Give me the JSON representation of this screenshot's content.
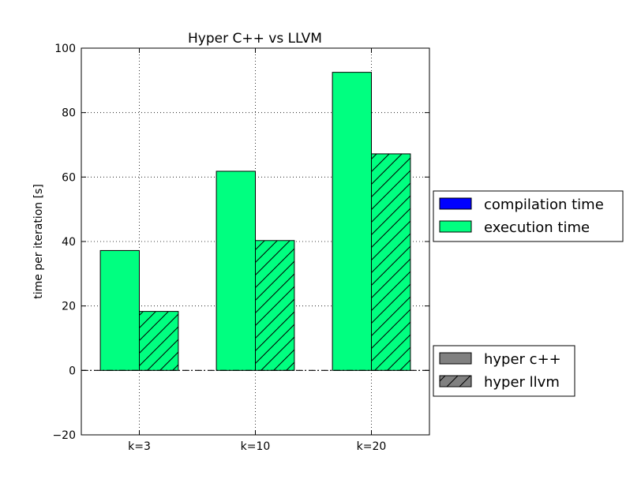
{
  "chart_data": {
    "type": "bar",
    "title": "Hyper C++ vs LLVM",
    "xlabel": "",
    "ylabel": "time per iteration [s]",
    "categories": [
      "k=3",
      "k=10",
      "k=20"
    ],
    "ylim": [
      -20,
      100
    ],
    "yticks": [
      -20,
      0,
      20,
      40,
      60,
      80,
      100
    ],
    "grid": true,
    "series": [
      {
        "name": "hyper c++",
        "values": [
          37.2,
          61.8,
          92.5
        ]
      },
      {
        "name": "hyper llvm",
        "values": [
          18.3,
          40.3,
          67.2
        ]
      }
    ],
    "compilation_time": {
      "hyper c++": [
        0,
        0,
        0
      ],
      "hyper llvm": [
        0,
        0,
        0
      ]
    },
    "legends": [
      {
        "placement": "right",
        "entries": [
          {
            "label": "compilation time",
            "color": "#0000ff",
            "hatch": false
          },
          {
            "label": "execution time",
            "color": "#00ff80",
            "hatch": false
          }
        ]
      },
      {
        "placement": "lower-right",
        "entries": [
          {
            "label": "hyper c++",
            "color": "#808080",
            "hatch": false
          },
          {
            "label": "hyper llvm",
            "color": "#808080",
            "hatch": true
          }
        ]
      }
    ],
    "colors": {
      "compilation": "#0000ff",
      "execution": "#00ff80",
      "legend_gray": "#808080"
    }
  }
}
